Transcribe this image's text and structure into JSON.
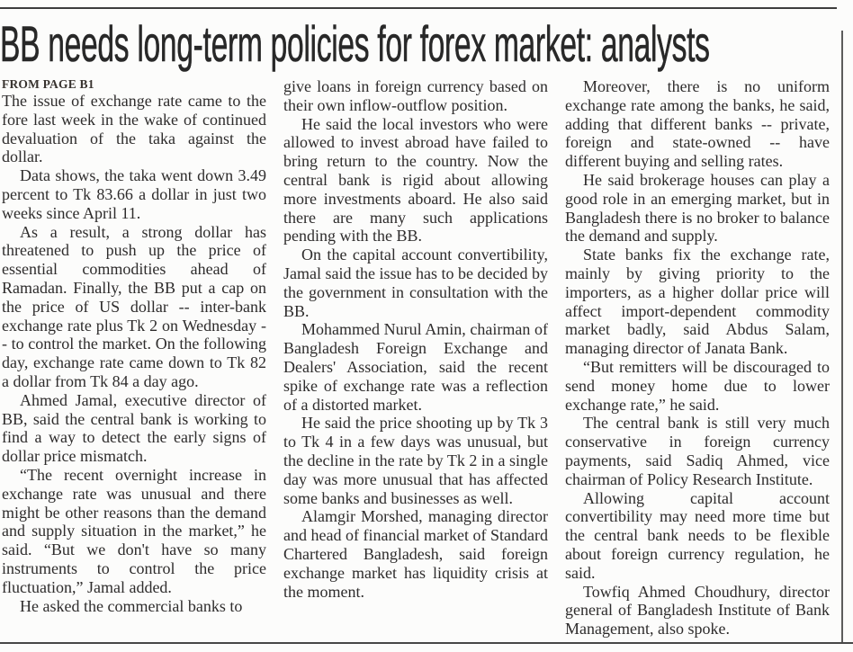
{
  "page": {
    "headline": "BB needs long-term policies for forex market: analysts",
    "kicker": "FROM PAGE B1"
  },
  "colors": {
    "background": "#fcfcfb",
    "body_text": "#2e2c2c",
    "headline_text": "#282828",
    "rule": "#474747"
  },
  "columns": [
    {
      "paragraphs": [
        {
          "indent": false,
          "text": "The issue of exchange rate came to the fore last week in the wake of continued devaluation of the taka against the dollar."
        },
        {
          "indent": true,
          "text": "Data shows, the taka went down 3.49 percent to Tk 83.66 a dollar in just two weeks since April 11."
        },
        {
          "indent": true,
          "text": "As a result, a strong dollar has threatened to push up the price of essential commodities ahead of Ramadan. Finally, the BB put a cap on the price of US dollar -- inter-bank exchange rate plus Tk 2 on Wednesday -- to control the market. On the following day, exchange rate came down to Tk 82 a dollar from Tk 84 a day ago."
        },
        {
          "indent": true,
          "text": "Ahmed Jamal, executive director of BB, said the central bank is working to find a way to detect the early signs of dollar price mismatch."
        },
        {
          "indent": true,
          "text": "“The recent overnight increase in exchange rate was unusual and there might be other reasons than the demand and supply situation in the market,” he said. “But we don't have so many instruments to control the price fluctuation,” Jamal added."
        },
        {
          "indent": true,
          "text": "He asked the commercial banks to"
        }
      ]
    },
    {
      "paragraphs": [
        {
          "indent": false,
          "text": "give loans in foreign currency based on their own inflow-outflow position."
        },
        {
          "indent": true,
          "text": "He said the local investors who were allowed to invest abroad have failed to bring return to the country. Now the central bank is rigid about allowing more investments aboard. He also said there are many such applications pending with the BB."
        },
        {
          "indent": true,
          "text": "On the capital account convertibility, Jamal said the issue has to be decided by the government in consultation with the BB."
        },
        {
          "indent": true,
          "text": "Mohammed Nurul Amin, chairman of Bangladesh Foreign Exchange and Dealers' Association, said the recent spike of exchange rate was a reflection of a distorted market."
        },
        {
          "indent": true,
          "text": "He said the price shooting up by Tk 3 to Tk 4 in a few days was unusual, but the decline in the rate by Tk 2 in a single day was more unusual that has affected some banks and businesses as well."
        },
        {
          "indent": true,
          "text": "Alamgir Morshed, managing director and head of financial market of Standard Chartered Bangladesh, said foreign exchange market has liquidity crisis at the moment."
        }
      ]
    },
    {
      "paragraphs": [
        {
          "indent": true,
          "text": "Moreover, there is no uniform exchange rate among the banks, he said, adding that different banks -- private, foreign and state-owned -- have different buying and selling rates."
        },
        {
          "indent": true,
          "text": "He said brokerage houses can play a good role in an emerging market, but in Bangladesh there is no broker to balance the demand and supply."
        },
        {
          "indent": true,
          "text": "State banks fix the exchange rate, mainly by giving priority to the importers, as a higher dollar price will affect import-dependent commodity market badly, said Abdus Salam, managing director of Janata Bank."
        },
        {
          "indent": true,
          "text": "“But remitters will be discouraged to send money home due to lower exchange rate,” he said."
        },
        {
          "indent": true,
          "text": "The central bank is still very much conservative in foreign currency payments, said Sadiq Ahmed, vice chairman of Policy Research Institute."
        },
        {
          "indent": true,
          "text": "Allowing capital account convertibility may need more time but the central bank needs to be flexible about foreign currency regulation, he said."
        },
        {
          "indent": true,
          "text": "Towfiq Ahmed Choudhury, director general of Bangladesh Institute of Bank Management, also spoke."
        }
      ]
    }
  ]
}
